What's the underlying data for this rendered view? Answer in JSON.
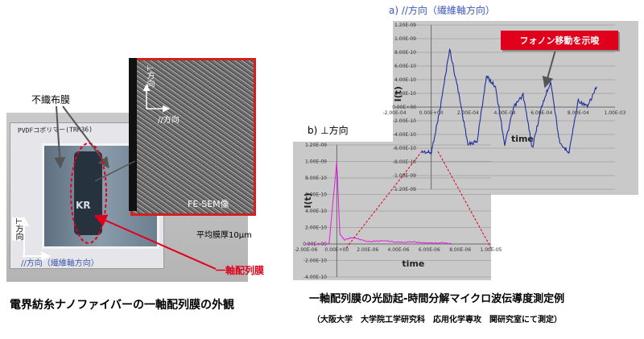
{
  "left": {
    "labels": {
      "nonwoven": "不織布膜",
      "fesem": "FE-SEM像",
      "thickness": "平均膜厚10μm",
      "uniaxial": "一軸配列膜",
      "perp_direction": "⊥方向",
      "fiber_direction": "//方向（繊維軸方向）",
      "sem_perp": "⊥方向",
      "sem_parallel": "//方向",
      "photo_handwriting": "PVDFコポリマー(TRR36)",
      "photo_watermark": "KR"
    },
    "caption": "電界紡糸ナノファイバーの一軸配列膜の外観"
  },
  "right": {
    "callout": "フォノン移動を示唆",
    "caption": "一軸配列膜の光励起-時間分解マイクロ波伝導度測定例",
    "caption_sub": "（大阪大学　大学院工学研究科　応用化学専攻　関研究室にて測定）"
  },
  "chart_data": [
    {
      "type": "line",
      "title": "a) //方向（繊維軸方向）",
      "xlabel": "time",
      "ylabel": "I(t)",
      "xlim": [
        -0.0002,
        0.001
      ],
      "ylim": [
        -1.2e-09,
        1.2e-09
      ],
      "x_ticks": [
        "-2.00E-04",
        "0.00E+00",
        "2.00E-04",
        "4.00E-04",
        "6.00E-04",
        "8.00E-04",
        "1.00E-03"
      ],
      "y_ticks": [
        "1.20E-09",
        "1.00E-09",
        "8.00E-10",
        "6.00E-10",
        "4.00E-10",
        "2.00E-10",
        "0.00E+00",
        "-2.00E-10",
        "-4.00E-10",
        "-6.00E-10",
        "-8.00E-10",
        "-1.00E-09",
        "-1.20E-09"
      ],
      "grid": true,
      "series": [
        {
          "color": "#1f2f9b",
          "x": [
            -5e-05,
            0.0,
            5e-05,
            0.0001,
            0.00015,
            0.0002,
            0.00025,
            0.0003,
            0.00035,
            0.0004,
            0.00045,
            0.0005,
            0.00055,
            0.0006,
            0.00065,
            0.0007,
            0.00075,
            0.0008,
            0.00085,
            0.0009
          ],
          "y": [
            -6.5e-10,
            -6.7e-10,
            0.0,
            8.5e-10,
            2e-10,
            -5.5e-10,
            -5e-10,
            4.5e-10,
            3e-10,
            -5.5e-10,
            0.0,
            1.8e-10,
            -6e-10,
            0.0,
            3.8e-10,
            -5.5e-10,
            -6.5e-10,
            1e-10,
            0.0,
            3e-10
          ]
        }
      ]
    },
    {
      "type": "line",
      "title": "b) ⊥方向",
      "xlabel": "time",
      "ylabel": "I(t)",
      "xlim": [
        -2e-06,
        1e-05
      ],
      "ylim": [
        -4e-10,
        1.2e-09
      ],
      "x_ticks": [
        "-2.00E-06",
        "0.00E+00",
        "2.00E-06",
        "4.00E-06",
        "6.00E-06",
        "8.00E-06",
        "1.00E-05"
      ],
      "y_ticks": [
        "1.20E-09",
        "1.00E-09",
        "8.00E-10",
        "6.00E-10",
        "4.00E-10",
        "2.00E-10",
        "0.00E+00",
        "-2.00E-10",
        "-4.00E-10"
      ],
      "grid": true,
      "series": [
        {
          "color": "#e319e3",
          "x": [
            -2e-06,
            -5e-07,
            0.0,
            2e-07,
            5e-07,
            1e-06,
            2e-06,
            3e-06,
            4e-06,
            5e-06,
            6e-06,
            7e-06,
            7.5e-06
          ],
          "y": [
            0.0,
            0.0,
            1e-09,
            1.2e-10,
            5e-11,
            8e-11,
            3e-11,
            4e-11,
            2e-11,
            2.5e-11,
            1e-11,
            1.5e-11,
            0.0
          ]
        }
      ]
    }
  ]
}
